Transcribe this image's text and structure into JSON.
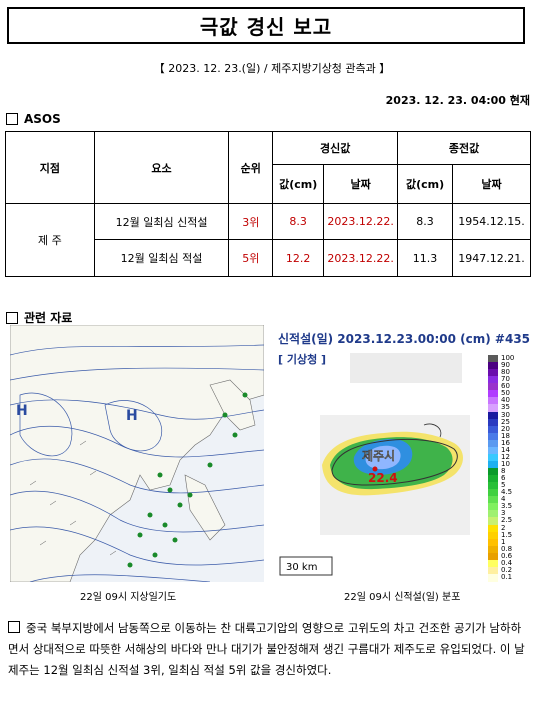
{
  "title": "극값 경신 보고",
  "subtitle": "【 2023. 12. 23.(일) / 제주지방기상청 관측과 】",
  "datetime": "2023. 12. 23. 04:00 현재",
  "section_asos": "ASOS",
  "table": {
    "headers": {
      "station": "지점",
      "element": "요소",
      "rank": "순위",
      "new_value": "경신값",
      "prev_value": "종전값",
      "value_cm": "값(cm)",
      "date": "날짜"
    },
    "station": "제 주",
    "rows": [
      {
        "element": "12월 일최심 신적설",
        "rank": "3위",
        "value": "8.3",
        "date": "2023.12.22.",
        "prev_value": "8.3",
        "prev_date": "1954.12.15."
      },
      {
        "element": "12월 일최심 적설",
        "rank": "5위",
        "value": "12.2",
        "date": "2023.12.22.",
        "prev_value": "11.3",
        "prev_date": "1947.12.21."
      }
    ]
  },
  "section_related": "관련 자료",
  "weather_map": {
    "caption": "22일 09시 지상일기도",
    "high_label": "H"
  },
  "radar": {
    "title": "신적설(일) 2023.12.23.00:00 (cm) #435",
    "agency": "[ 기상청 ]",
    "place": "제주시",
    "value": "22.4",
    "scale": "30 km",
    "caption": "22일 09시 신적설(일) 분포",
    "legend": [
      "100",
      "90",
      "80",
      "70",
      "60",
      "50",
      "40",
      "35",
      "30",
      "25",
      "20",
      "18",
      "16",
      "14",
      "12",
      "10",
      "8",
      "6",
      "5",
      "4.5",
      "4",
      "3.5",
      "3",
      "2.5",
      "2",
      "1.5",
      "1",
      "0.8",
      "0.6",
      "0.4",
      "0.2",
      "0.1"
    ],
    "colors": {
      "blue": "#1f3a8a"
    }
  },
  "description": "중국 북부지방에서 남동쪽으로 이동하는 찬 대륙고기압의 영향으로 고위도의 차고 건조한 공기가 남하하면서 상대적으로 따뜻한 서해상의 바다와 만나 대기가 불안정해져 생긴 구름대가 제주도로 유입되었다. 이 날 제주는 12월 일최심 신적설 3위, 일최심 적설 5위 값을 경신하였다."
}
